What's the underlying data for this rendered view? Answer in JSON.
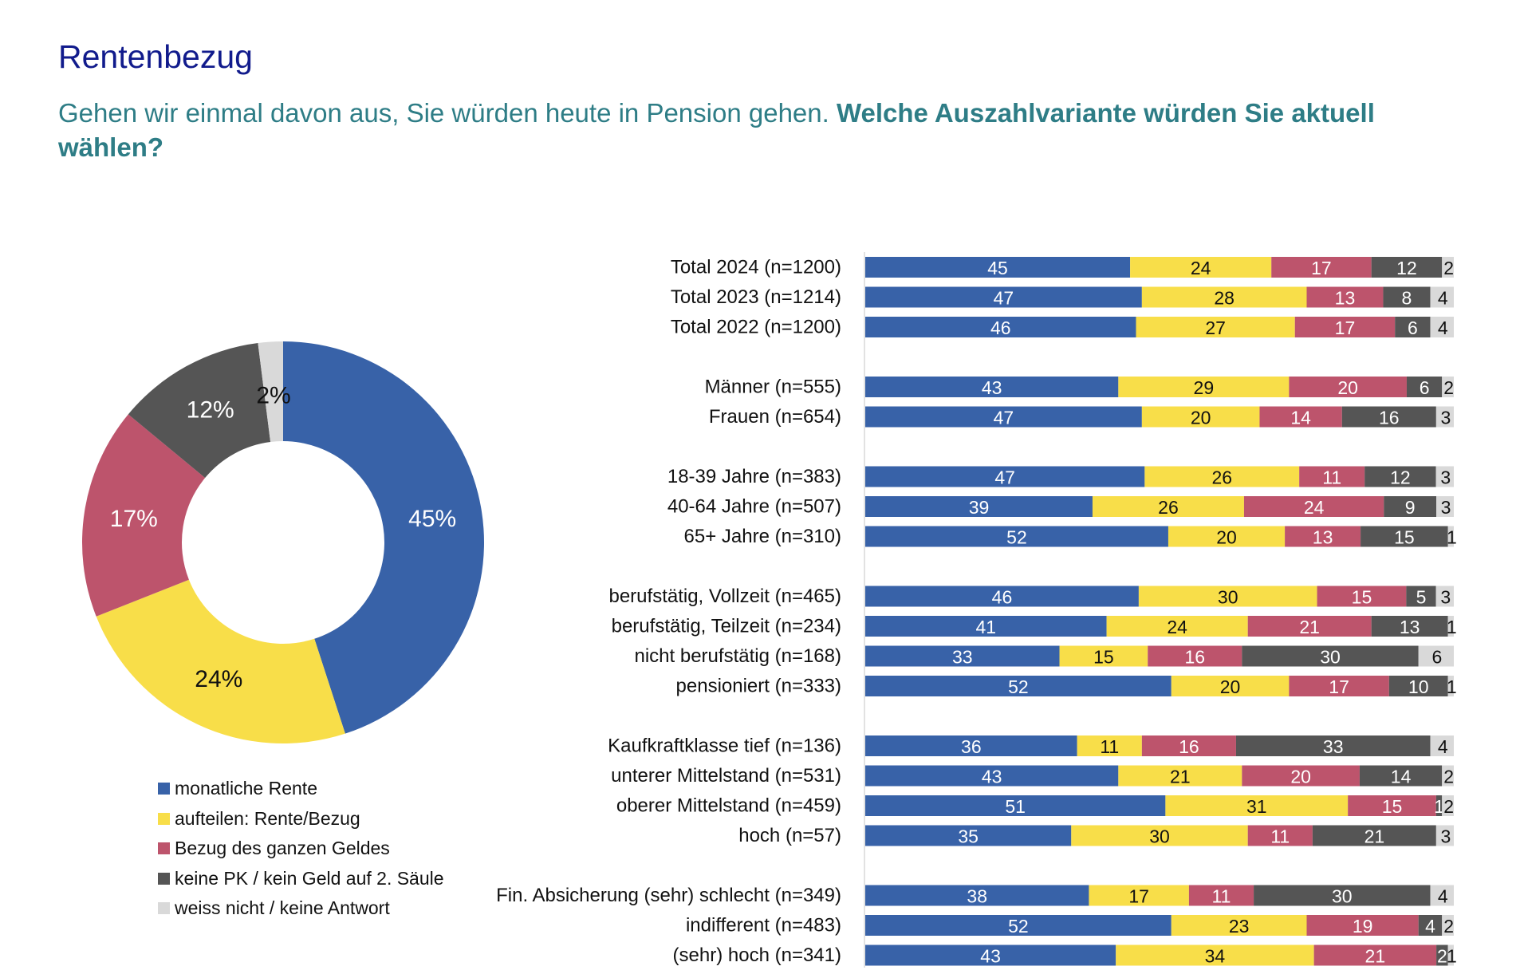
{
  "title": "Rentenbezug",
  "question": {
    "intro": "Gehen wir einmal davon aus, Sie würden heute in Pension gehen. ",
    "bold": "Welche Auszahlvariante würden Sie aktuell wählen?"
  },
  "chart_data": [
    {
      "type": "pie",
      "variant": "donut",
      "labels": [
        "monatliche Rente",
        "aufteilen: Rente/Bezug",
        "Bezug des ganzen Geldes",
        "keine PK / kein Geld auf 2. Säule",
        "weiss nicht / keine Antwort"
      ],
      "values": [
        45,
        24,
        17,
        12,
        2
      ],
      "value_labels": [
        "45%",
        "24%",
        "17%",
        "12%",
        "2%"
      ],
      "colors": [
        "#3862a8",
        "#f8de49",
        "#bd546c",
        "#555555",
        "#d9d9d9"
      ],
      "legend": "bottom"
    },
    {
      "type": "bar",
      "orientation": "horizontal",
      "stacked": true,
      "series_names": [
        "monatliche Rente",
        "aufteilen: Rente/Bezug",
        "Bezug des ganzen Geldes",
        "keine PK / kein Geld auf 2. Säule",
        "weiss nicht / keine Antwort"
      ],
      "colors": [
        "#3862a8",
        "#f8de49",
        "#bd546c",
        "#555555",
        "#d9d9d9"
      ],
      "rows": [
        {
          "label": "Total 2024 (n=1200)",
          "values": [
            45,
            24,
            17,
            12,
            2
          ]
        },
        {
          "label": "Total 2023 (n=1214)",
          "values": [
            47,
            28,
            13,
            8,
            4
          ]
        },
        {
          "label": "Total 2022 (n=1200)",
          "values": [
            46,
            27,
            17,
            6,
            4
          ]
        },
        {
          "label": "Männer (n=555)",
          "values": [
            43,
            29,
            20,
            6,
            2
          ]
        },
        {
          "label": "Frauen (n=654)",
          "values": [
            47,
            20,
            14,
            16,
            3
          ]
        },
        {
          "label": "18-39 Jahre (n=383)",
          "values": [
            47,
            26,
            11,
            12,
            3
          ]
        },
        {
          "label": "40-64 Jahre (n=507)",
          "values": [
            39,
            26,
            24,
            9,
            3
          ]
        },
        {
          "label": "65+ Jahre (n=310)",
          "values": [
            52,
            20,
            13,
            15,
            1
          ]
        },
        {
          "label": "berufstätig, Vollzeit (n=465)",
          "values": [
            46,
            30,
            15,
            5,
            3
          ]
        },
        {
          "label": "berufstätig, Teilzeit (n=234)",
          "values": [
            41,
            24,
            21,
            13,
            1
          ]
        },
        {
          "label": "nicht berufstätig (n=168)",
          "values": [
            33,
            15,
            16,
            30,
            6
          ]
        },
        {
          "label": "pensioniert (n=333)",
          "values": [
            52,
            20,
            17,
            10,
            1
          ]
        },
        {
          "label": "Kaufkraftklasse tief (n=136)",
          "values": [
            36,
            11,
            16,
            33,
            4
          ]
        },
        {
          "label": "unterer Mittelstand (n=531)",
          "values": [
            43,
            21,
            20,
            14,
            2
          ]
        },
        {
          "label": "oberer Mittelstand (n=459)",
          "values": [
            51,
            31,
            15,
            1,
            2
          ]
        },
        {
          "label": "hoch (n=57)",
          "values": [
            35,
            30,
            11,
            21,
            3
          ]
        },
        {
          "label": "Fin. Absicherung (sehr) schlecht (n=349)",
          "values": [
            38,
            17,
            11,
            30,
            4
          ]
        },
        {
          "label": "indifferent (n=483)",
          "values": [
            52,
            23,
            19,
            4,
            2
          ]
        },
        {
          "label": "(sehr) hoch (n=341)",
          "values": [
            43,
            34,
            21,
            2,
            1
          ]
        }
      ],
      "groups": [
        [
          0,
          1,
          2
        ],
        [
          3,
          4
        ],
        [
          5,
          6,
          7
        ],
        [
          8,
          9,
          10,
          11
        ],
        [
          12,
          13,
          14,
          15
        ],
        [
          16,
          17,
          18
        ]
      ]
    }
  ]
}
